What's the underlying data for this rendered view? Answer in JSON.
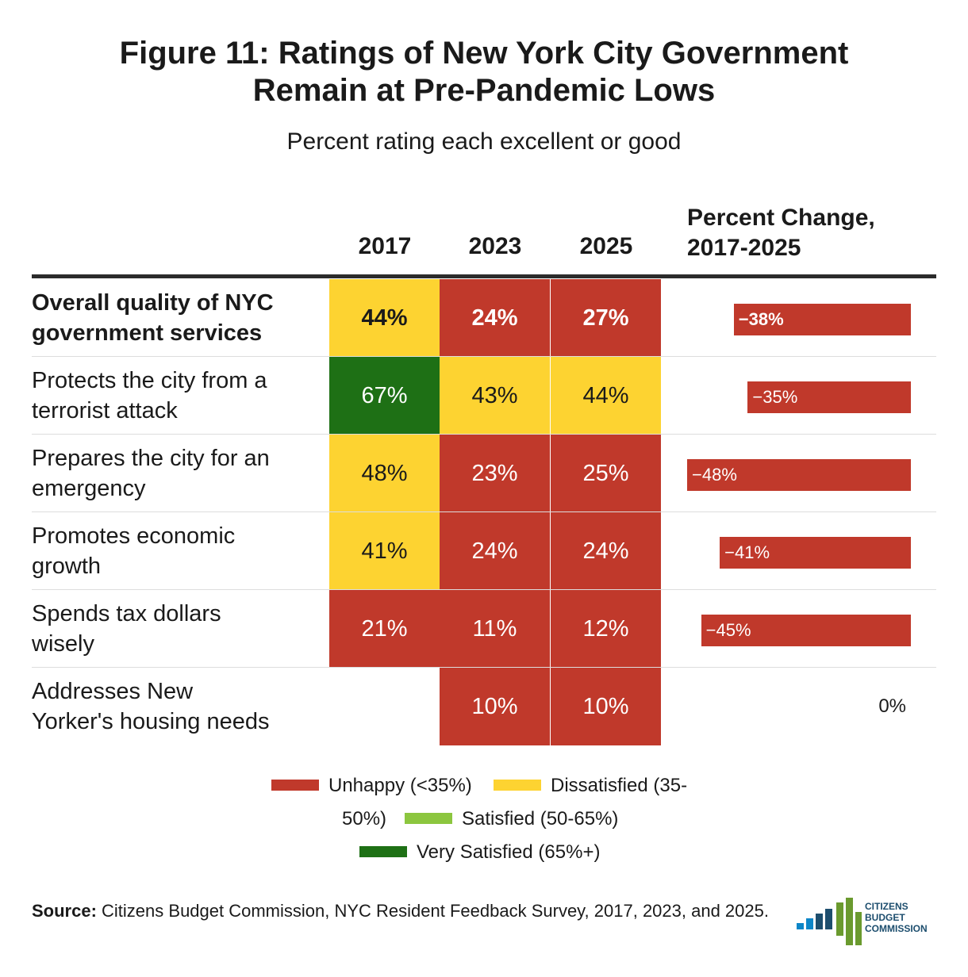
{
  "title_lines": [
    "Figure 11: Ratings of New York City Government",
    "Remain at Pre-Pandemic Lows"
  ],
  "subtitle": "Percent rating each excellent or good",
  "colors": {
    "unhappy": "#c0392b",
    "dissatisfied": "#fdd331",
    "satisfied": "#8cc63f",
    "very_satisfied": "#1e7015",
    "text_dark": "#1a1a1a",
    "text_light": "#ffffff"
  },
  "chart_data": {
    "type": "table",
    "title": "Figure 11: Ratings of New York City Government Remain at Pre-Pandemic Lows",
    "subtitle": "Percent rating each excellent or good",
    "columns": [
      "2017",
      "2023",
      "2025"
    ],
    "change_header": [
      "Percent Change,",
      "2017-2025"
    ],
    "rows": [
      {
        "label_lines": [
          "Overall quality of NYC",
          "government services"
        ],
        "bold": true,
        "values": [
          44,
          24,
          27
        ],
        "display": [
          "44%",
          "24%",
          "27%"
        ],
        "categories": [
          "dissatisfied",
          "unhappy",
          "unhappy"
        ],
        "change": -38,
        "change_label": "−38%"
      },
      {
        "label_lines": [
          "Protects the city from a",
          "terrorist attack"
        ],
        "bold": false,
        "values": [
          67,
          43,
          44
        ],
        "display": [
          "67%",
          "43%",
          "44%"
        ],
        "categories": [
          "very_satisfied",
          "dissatisfied",
          "dissatisfied"
        ],
        "change": -35,
        "change_label": "−35%"
      },
      {
        "label_lines": [
          "Prepares the city for an",
          "emergency"
        ],
        "bold": false,
        "values": [
          48,
          23,
          25
        ],
        "display": [
          "48%",
          "23%",
          "25%"
        ],
        "categories": [
          "dissatisfied",
          "unhappy",
          "unhappy"
        ],
        "change": -48,
        "change_label": "−48%"
      },
      {
        "label_lines": [
          "Promotes economic",
          "growth"
        ],
        "bold": false,
        "values": [
          41,
          24,
          24
        ],
        "display": [
          "41%",
          "24%",
          "24%"
        ],
        "categories": [
          "dissatisfied",
          "unhappy",
          "unhappy"
        ],
        "change": -41,
        "change_label": "−41%"
      },
      {
        "label_lines": [
          "Spends tax dollars",
          "wisely"
        ],
        "bold": false,
        "values": [
          21,
          11,
          12
        ],
        "display": [
          "21%",
          "11%",
          "12%"
        ],
        "categories": [
          "unhappy",
          "unhappy",
          "unhappy"
        ],
        "change": -45,
        "change_label": "−45%"
      },
      {
        "label_lines": [
          "Addresses New",
          "Yorker's housing needs"
        ],
        "bold": false,
        "values": [
          null,
          10,
          10
        ],
        "display": [
          "",
          "10%",
          "10%"
        ],
        "categories": [
          null,
          "unhappy",
          "unhappy"
        ],
        "change": 0,
        "change_label": "0%"
      }
    ],
    "change_axis_min": -48,
    "legend": [
      {
        "key": "unhappy",
        "label": "Unhappy (<35%)"
      },
      {
        "key": "dissatisfied",
        "label": "Dissatisfied (35-",
        "label_cont": "50%)"
      },
      {
        "key": "satisfied",
        "label": "Satisfied (50-65%)"
      },
      {
        "key": "very_satisfied",
        "label": "Very Satisfied (65%+)"
      }
    ]
  },
  "source": {
    "bold": "Source:",
    "text": " Citizens Budget Commission, NYC Resident Feedback Survey, 2017, 2023, and 2025."
  },
  "logo": {
    "lines": [
      "CITIZENS",
      "BUDGET",
      "COMMISSION"
    ],
    "colors": [
      "#0d86c8",
      "#1d4e6e",
      "#6a9a2e"
    ]
  }
}
